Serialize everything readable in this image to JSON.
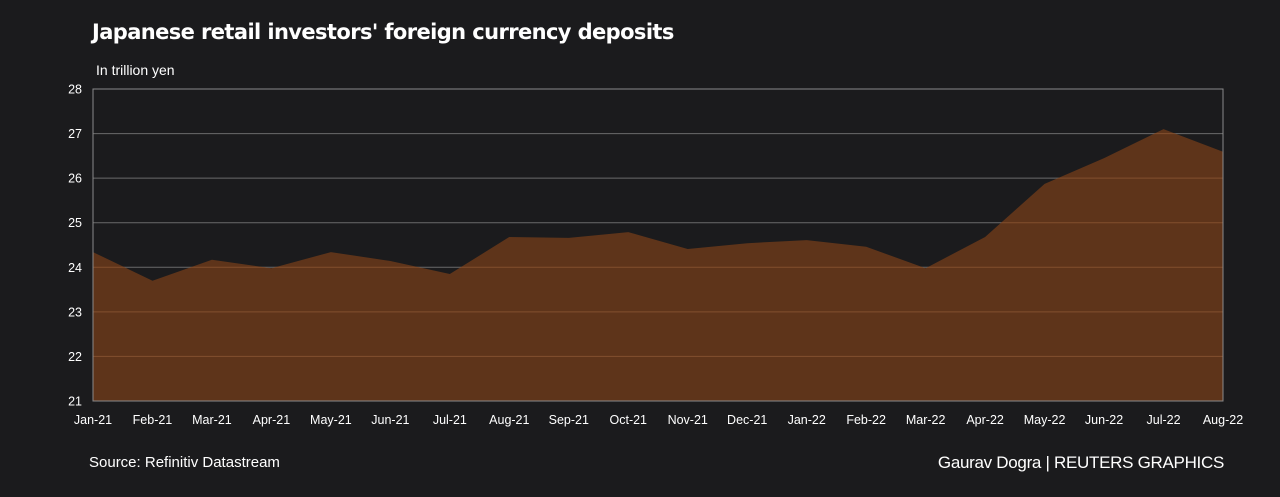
{
  "header": {
    "title": "Japanese retail investors' foreign currency deposits",
    "subtitle": "In trillion yen"
  },
  "footer": {
    "source": "Source:  Refinitiv Datastream",
    "credit": "Gaurav Dogra | REUTERS GRAPHICS"
  },
  "colors": {
    "background": "#1b1b1d",
    "area_fill": "#5e341a",
    "gridline": "#6b6b6b",
    "text": "#ffffff"
  },
  "chart_data": {
    "type": "area",
    "title": "Japanese retail investors' foreign currency deposits",
    "subtitle": "In trillion yen",
    "xlabel": "",
    "ylabel": "In trillion yen",
    "ylim": [
      21,
      28
    ],
    "yticks": [
      21,
      22,
      23,
      24,
      25,
      26,
      27,
      28
    ],
    "grid": true,
    "legend": "none",
    "categories": [
      "Jan-21",
      "Feb-21",
      "Mar-21",
      "Apr-21",
      "May-21",
      "Jun-21",
      "Jul-21",
      "Aug-21",
      "Sep-21",
      "Oct-21",
      "Nov-21",
      "Dec-21",
      "Jan-22",
      "Feb-22",
      "Mar-22",
      "Apr-22",
      "May-22",
      "Jun-22",
      "Jul-22",
      "Aug-22"
    ],
    "series": [
      {
        "name": "Foreign currency deposits",
        "values": [
          24.34,
          23.7,
          24.17,
          23.98,
          24.34,
          24.14,
          23.85,
          24.68,
          24.66,
          24.79,
          24.41,
          24.54,
          24.61,
          24.46,
          23.98,
          24.68,
          25.87,
          26.45,
          27.1,
          26.59
        ]
      }
    ],
    "source": "Refinitiv Datastream"
  }
}
